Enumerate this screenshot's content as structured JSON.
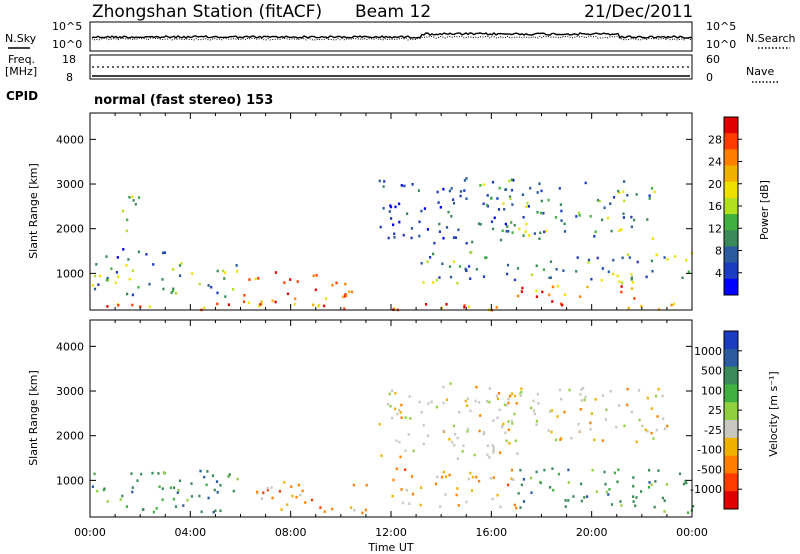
{
  "header": {
    "station": "Zhongshan Station (fitACF)",
    "beam": "Beam 12",
    "date": "21/Dec/2011"
  },
  "noise_panel": {
    "left_label": "N.Sky",
    "right_label": "N.Search",
    "left_ticks": [
      "10^5",
      "10^0"
    ],
    "right_ticks": [
      "10^5",
      "10^0"
    ]
  },
  "freq_panel": {
    "left_label_1": "Freq.",
    "left_label_2": "[MHz]",
    "right_label": "Nave",
    "left_ticks": [
      "18",
      "8"
    ],
    "right_ticks": [
      "60",
      "0"
    ]
  },
  "cpid": {
    "label": "CPID",
    "mode": "normal (fast stereo) 153"
  },
  "chart_data": [
    {
      "type": "heatmap",
      "panel": "power",
      "ylabel": "Slant Range [km]",
      "xlabel": "Time UT",
      "x_ticks": [
        "00:00",
        "04:00",
        "08:00",
        "12:00",
        "16:00",
        "20:00",
        "00:00"
      ],
      "x_hours": [
        0,
        4,
        8,
        12,
        16,
        20,
        24
      ],
      "ylim": [
        180,
        4590
      ],
      "y_ticks": [
        1000,
        2000,
        3000,
        4000
      ],
      "colorbar": {
        "label": "Power [dB]",
        "ticks": [
          "28",
          "24",
          "20",
          "16",
          "12",
          "8",
          "4"
        ],
        "colors": [
          "#e00000",
          "#ff3c00",
          "#ff8000",
          "#f0b000",
          "#f0e000",
          "#b0e020",
          "#40b040",
          "#3a8a5a",
          "#2a5aa0",
          "#1c3cc0",
          "#0000ff"
        ]
      },
      "regions": [
        {
          "hours": [
            0.0,
            3.0
          ],
          "range_km": [
            1300,
            1600
          ],
          "level": "low"
        },
        {
          "hours": [
            1.0,
            2.0
          ],
          "range_km": [
            1900,
            2800
          ],
          "level": "mid"
        },
        {
          "hours": [
            0.0,
            6.0
          ],
          "range_km": [
            500,
            1300
          ],
          "level": "mid"
        },
        {
          "hours": [
            6.0,
            10.5
          ],
          "range_km": [
            300,
            1100
          ],
          "level": "high"
        },
        {
          "hours": [
            0.0,
            24.0
          ],
          "range_km": [
            200,
            350
          ],
          "level": "high"
        },
        {
          "hours": [
            11.5,
            17.0
          ],
          "range_km": [
            1700,
            3200
          ],
          "level": "low"
        },
        {
          "hours": [
            13.0,
            24.0
          ],
          "range_km": [
            800,
            1500
          ],
          "level": "mid"
        },
        {
          "hours": [
            15.5,
            22.5
          ],
          "range_km": [
            1800,
            3100
          ],
          "level": "mid"
        },
        {
          "hours": [
            17.0,
            22.0
          ],
          "range_km": [
            350,
            750
          ],
          "level": "high"
        }
      ]
    },
    {
      "type": "heatmap",
      "panel": "velocity",
      "ylabel": "Slant Range [km]",
      "xlabel": "Time UT",
      "x_ticks": [
        "00:00",
        "04:00",
        "08:00",
        "12:00",
        "16:00",
        "20:00",
        "00:00"
      ],
      "x_hours": [
        0,
        4,
        8,
        12,
        16,
        20,
        24
      ],
      "ylim": [
        180,
        4590
      ],
      "y_ticks": [
        1000,
        2000,
        3000,
        4000
      ],
      "colorbar": {
        "label": "Velocity [m s⁻¹]",
        "ticks": [
          "1000",
          "500",
          "100",
          "25",
          "-25",
          "-100",
          "-500",
          "-1000"
        ],
        "colors": [
          "#1c3cc0",
          "#2a5aa0",
          "#3a8a5a",
          "#40b040",
          "#90d040",
          "#c8c8c0",
          "#f0b000",
          "#ff8000",
          "#ff3c00",
          "#e00000"
        ]
      },
      "regions": [
        {
          "hours": [
            0.0,
            6.0
          ],
          "range_km": [
            300,
            1300
          ],
          "level": "toward"
        },
        {
          "hours": [
            6.5,
            11.0
          ],
          "range_km": [
            300,
            1000
          ],
          "level": "away"
        },
        {
          "hours": [
            11.5,
            17.0
          ],
          "range_km": [
            1500,
            3200
          ],
          "level": "grey"
        },
        {
          "hours": [
            12.0,
            17.0
          ],
          "range_km": [
            400,
            1300
          ],
          "level": "away"
        },
        {
          "hours": [
            16.0,
            23.0
          ],
          "range_km": [
            1800,
            3100
          ],
          "level": "grey"
        },
        {
          "hours": [
            17.0,
            24.0
          ],
          "range_km": [
            300,
            1300
          ],
          "level": "toward"
        }
      ]
    }
  ]
}
